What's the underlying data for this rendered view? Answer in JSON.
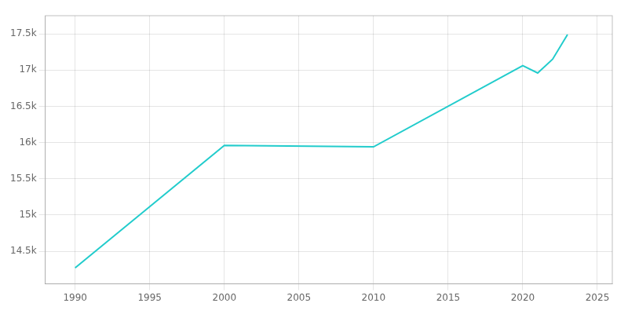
{
  "chart_data": {
    "type": "line",
    "x": [
      1990,
      2000,
      2010,
      2020,
      2021,
      2022,
      2023
    ],
    "values": [
      14270,
      15960,
      15940,
      17060,
      16960,
      17150,
      17490
    ],
    "color": "#22CCCC",
    "xlim": [
      1988,
      2026
    ],
    "ylim": [
      14050,
      17750
    ],
    "xticks": [
      1990,
      1995,
      2000,
      2005,
      2010,
      2015,
      2020,
      2025
    ],
    "yticks": [
      {
        "value": 14500,
        "label": "14.5k"
      },
      {
        "value": 15000,
        "label": "15k"
      },
      {
        "value": 15500,
        "label": "15.5k"
      },
      {
        "value": 16000,
        "label": "16k"
      },
      {
        "value": 16500,
        "label": "16.5k"
      },
      {
        "value": 17000,
        "label": "17k"
      },
      {
        "value": 17500,
        "label": "17.5k"
      }
    ],
    "grid": true
  }
}
